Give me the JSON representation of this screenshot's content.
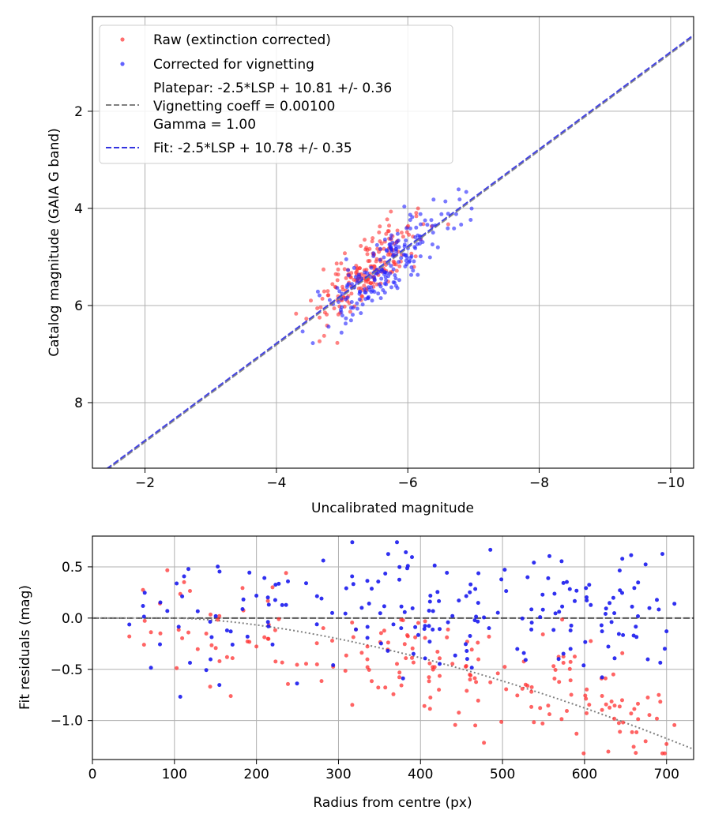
{
  "chart_data": [
    {
      "type": "scatter",
      "xlabel": "Uncalibrated magnitude",
      "ylabel": "Catalog magnitude (GAIA G band)",
      "xlim": [
        -1.2,
        -10.35
      ],
      "ylim": [
        9.35,
        0.05
      ],
      "x_ticks": [
        -2,
        -4,
        -6,
        -8,
        -10
      ],
      "x_tick_labels": [
        "−2",
        "−4",
        "−6",
        "−8",
        "−10"
      ],
      "y_ticks": [
        2,
        4,
        6,
        8
      ],
      "y_tick_labels": [
        "2",
        "4",
        "6",
        "8"
      ],
      "grid": true,
      "legend_position": "top-left",
      "legend": {
        "raw": "Raw (extinction corrected)",
        "corrected": "Corrected for vignetting",
        "platepar_line1": "Platepar: -2.5*LSP + 10.81 +/- 0.36",
        "platepar_line2": "Vignetting coeff = 0.00100",
        "platepar_line3": "Gamma = 1.00",
        "fit": "Fit: -2.5*LSP + 10.78 +/- 0.35"
      },
      "lines": [
        {
          "name": "platepar",
          "slope": 1.0,
          "intercept": 10.81,
          "color": "#808080",
          "dash": "dashed"
        },
        {
          "name": "fit",
          "slope": 1.0,
          "intercept": 10.78,
          "color": "#3333e0",
          "dash": "dashed"
        }
      ],
      "series": [
        {
          "name": "Raw (extinction corrected)",
          "color": "#ff3030",
          "center_x": -5.4,
          "center_y": 5.25,
          "spread_x": 0.42,
          "trend": 1.0,
          "scatter": 0.32,
          "n": 200,
          "x_range": [
            -4.3,
            -6.9
          ]
        },
        {
          "name": "Corrected for vignetting",
          "color": "#2020ff",
          "center_x": -5.7,
          "center_y": 5.15,
          "spread_x": 0.48,
          "trend": 1.0,
          "scatter": 0.33,
          "n": 200,
          "x_range": [
            -4.4,
            -7.2
          ]
        }
      ]
    },
    {
      "type": "scatter",
      "xlabel": "Radius from centre (px)",
      "ylabel": "Fit residuals (mag)",
      "xlim": [
        0,
        733
      ],
      "ylim": [
        -1.38,
        0.8
      ],
      "x_ticks": [
        0,
        100,
        200,
        300,
        400,
        500,
        600,
        700
      ],
      "x_tick_labels": [
        "0",
        "100",
        "200",
        "300",
        "400",
        "500",
        "600",
        "700"
      ],
      "y_ticks": [
        0.5,
        0.0,
        -0.5,
        -1.0
      ],
      "y_tick_labels": [
        "0.5",
        "0.0",
        "−0.5",
        "−1.0"
      ],
      "grid": true,
      "reference_line": {
        "y": 0.0,
        "color": "#555555",
        "dash": "dashed"
      },
      "vignetting_curve": {
        "coeff": 0.001,
        "start_radius": 100,
        "color": "#808080",
        "dash": "dotted"
      },
      "series": [
        {
          "name": "Raw (extinction corrected)",
          "color": "#ff3030",
          "n": 200,
          "x_range": [
            35,
            710
          ],
          "mean_offset": -0.15,
          "scatter": 0.26
        },
        {
          "name": "Corrected for vignetting",
          "color": "#2020ff",
          "n": 200,
          "x_range": [
            35,
            710
          ],
          "mean_offset": 0.0,
          "scatter": 0.33
        }
      ]
    }
  ]
}
